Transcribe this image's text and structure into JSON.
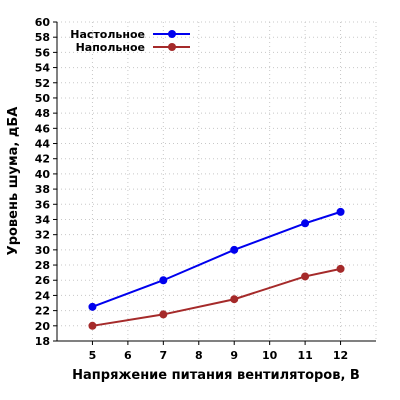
{
  "chart_data": {
    "type": "line",
    "xlabel": "Напряжение питания вентиляторов, В",
    "ylabel": "Уровень шума, дБА",
    "xlim": [
      4,
      13
    ],
    "ylim": [
      18,
      60
    ],
    "xticks": [
      5,
      6,
      7,
      8,
      9,
      10,
      11,
      12
    ],
    "yticks": [
      18,
      20,
      22,
      24,
      26,
      28,
      30,
      32,
      34,
      36,
      38,
      40,
      42,
      44,
      46,
      48,
      50,
      52,
      54,
      56,
      58,
      60
    ],
    "grid": true,
    "legend_position": "top-left",
    "series": [
      {
        "name": "Настольное",
        "color": "#0000ee",
        "x": [
          5,
          7,
          9,
          11,
          12
        ],
        "y": [
          22.5,
          26,
          30,
          33.5,
          35
        ]
      },
      {
        "name": "Напольное",
        "color": "#a52a2a",
        "x": [
          5,
          7,
          9,
          11,
          12
        ],
        "y": [
          20,
          21.5,
          23.5,
          26.5,
          27.5
        ]
      }
    ]
  }
}
